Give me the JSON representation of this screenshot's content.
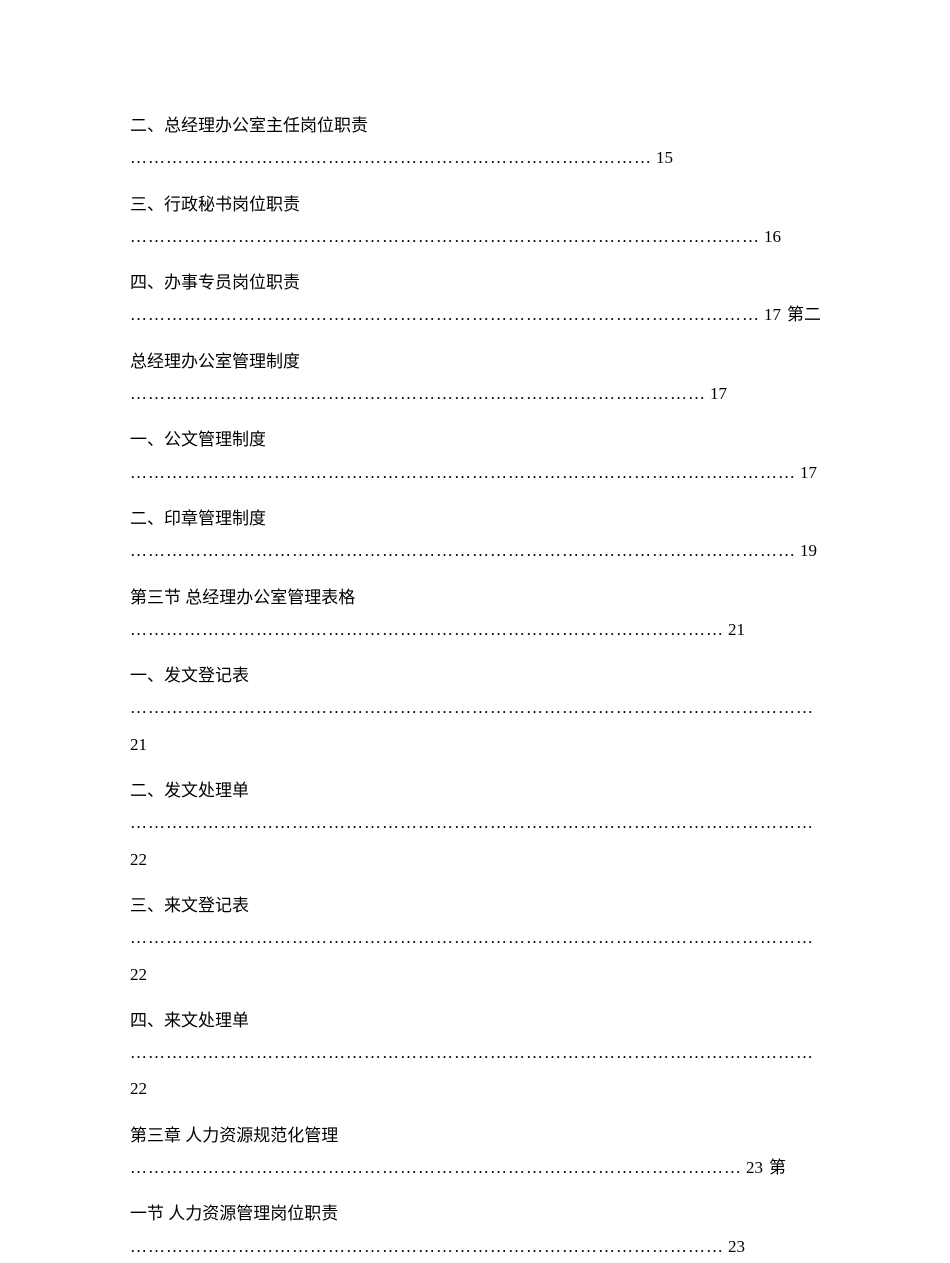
{
  "document": {
    "background_color": "#ffffff",
    "text_color": "#000000",
    "font_family": "SimSun",
    "font_size_pt": 12
  },
  "entries": [
    {
      "title": "二、总经理办公室主任岗位职责",
      "dots": "……………………………………………………………………………",
      "page": "15",
      "trailing": "",
      "wraps_number": false
    },
    {
      "title": "三、行政秘书岗位职责",
      "dots": "……………………………………………………………………………………………",
      "page": "16",
      "trailing": "",
      "wraps_number": false
    },
    {
      "title": "四、办事专员岗位职责",
      "dots": "……………………………………………………………………………………………",
      "page": "17",
      "trailing": "第二节",
      "wraps_number": false
    },
    {
      "title": "总经理办公室管理制度",
      "dots": "……………………………………………………………………………………",
      "page": "17",
      "trailing": "",
      "wraps_number": false
    },
    {
      "title": "一、公文管理制度",
      "dots": "…………………………………………………………………………………………………",
      "page": "17",
      "trailing": "",
      "wraps_number": false
    },
    {
      "title": "二、印章管理制度",
      "dots": "…………………………………………………………………………………………………",
      "page": "19",
      "trailing": "",
      "wraps_number": false
    },
    {
      "title": "第三节 总经理办公室管理表格",
      "dots": "………………………………………………………………………………………",
      "page": "21",
      "trailing": "",
      "wraps_number": false
    },
    {
      "title": "一、发文登记表",
      "dots": "……………………………………………………………………………………………………",
      "page": "21",
      "trailing": "",
      "wraps_number": true
    },
    {
      "title": "二、发文处理单",
      "dots": "……………………………………………………………………………………………………",
      "page": "22",
      "trailing": "",
      "wraps_number": true
    },
    {
      "title": "三、来文登记表",
      "dots": "……………………………………………………………………………………………………",
      "page": "22",
      "trailing": "",
      "wraps_number": true
    },
    {
      "title": "四、来文处理单",
      "dots": "……………………………………………………………………………………………………",
      "page": "22",
      "trailing": "",
      "wraps_number": true
    },
    {
      "title": "第三章 人力资源规范化管理",
      "dots": "…………………………………………………………………………………………",
      "page": "23",
      "trailing": "第",
      "wraps_number": false
    },
    {
      "title": "一节 人力资源管理岗位职责",
      "dots": "………………………………………………………………………………………",
      "page": "23",
      "trailing": "",
      "wraps_number": false
    }
  ]
}
